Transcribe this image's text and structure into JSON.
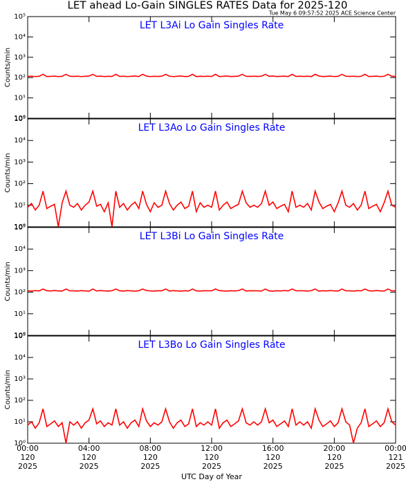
{
  "chart_data": {
    "type": "line",
    "title": "LET ahead Lo-Gain SINGLES RATES Data for 2025-120",
    "subtitle": "Tue May  6 09:57:52 2025 ACE Science Center",
    "xlabel": "UTC Day of Year",
    "ylabel": "Counts/min",
    "log_y": true,
    "xlim": [
      0,
      24
    ],
    "ylim": [
      1,
      100000
    ],
    "yticks": [
      {
        "value": 1,
        "label": "10⁰"
      },
      {
        "value": 10,
        "label": "10¹"
      },
      {
        "value": 100,
        "label": "10²"
      },
      {
        "value": 1000,
        "label": "10³"
      },
      {
        "value": 10000,
        "label": "10⁴"
      },
      {
        "value": 100000,
        "label": "10⁵"
      }
    ],
    "xticks": [
      {
        "value": 0,
        "label": "00:00",
        "day": "120",
        "year": "2025"
      },
      {
        "value": 4,
        "label": "04:00",
        "day": "120",
        "year": "2025"
      },
      {
        "value": 8,
        "label": "08:00",
        "day": "120",
        "year": "2025"
      },
      {
        "value": 12,
        "label": "12:00",
        "day": "120",
        "year": "2025"
      },
      {
        "value": 16,
        "label": "16:00",
        "day": "120",
        "year": "2025"
      },
      {
        "value": 20,
        "label": "20:00",
        "day": "120",
        "year": "2025"
      },
      {
        "value": 24,
        "label": "00:00",
        "day": "121",
        "year": "2025"
      }
    ],
    "x": [
      0,
      0.25,
      0.5,
      0.75,
      1,
      1.25,
      1.5,
      1.75,
      2,
      2.25,
      2.5,
      2.75,
      3,
      3.25,
      3.5,
      3.75,
      4,
      4.25,
      4.5,
      4.75,
      5,
      5.25,
      5.5,
      5.75,
      6,
      6.25,
      6.5,
      6.75,
      7,
      7.25,
      7.5,
      7.75,
      8,
      8.25,
      8.5,
      8.75,
      9,
      9.25,
      9.5,
      9.75,
      10,
      10.25,
      10.5,
      10.75,
      11,
      11.25,
      11.5,
      11.75,
      12,
      12.25,
      12.5,
      12.75,
      13,
      13.25,
      13.5,
      13.75,
      14,
      14.25,
      14.5,
      14.75,
      15,
      15.25,
      15.5,
      15.75,
      16,
      16.25,
      16.5,
      16.75,
      17,
      17.25,
      17.5,
      17.75,
      18,
      18.25,
      18.5,
      18.75,
      19,
      19.25,
      19.5,
      19.75,
      20,
      20.25,
      20.5,
      20.75,
      21,
      21.25,
      21.5,
      21.75,
      22,
      22.25,
      22.5,
      22.75,
      23,
      23.25,
      23.5,
      23.75,
      24
    ],
    "series": [
      {
        "name": "LET L3Ai Lo Gain Singles Rate",
        "color": "#ff0000",
        "title_color": "#0000ff",
        "values": [
          114,
          117,
          112,
          116,
          145,
          113,
          115,
          118,
          112,
          116,
          145,
          117,
          114,
          117,
          112,
          116,
          119,
          145,
          115,
          118,
          112,
          116,
          114,
          145,
          114,
          117,
          112,
          116,
          119,
          113,
          145,
          118,
          112,
          116,
          114,
          117,
          145,
          117,
          112,
          116,
          119,
          113,
          115,
          145,
          112,
          116,
          114,
          117,
          114,
          145,
          112,
          116,
          119,
          113,
          115,
          118,
          145,
          116,
          114,
          117,
          114,
          117,
          145,
          116,
          119,
          113,
          115,
          118,
          112,
          145,
          114,
          117,
          114,
          117,
          112,
          145,
          119,
          113,
          115,
          118,
          112,
          116,
          145,
          117,
          114,
          117,
          112,
          116,
          145,
          113,
          115,
          118,
          112,
          116,
          145,
          117,
          114
        ]
      },
      {
        "name": "LET L3Ao Lo Gain Singles Rate",
        "color": "#ff0000",
        "title_color": "#0000ff",
        "values": [
          8,
          12,
          6,
          10,
          45,
          7,
          9,
          11,
          1,
          13,
          45,
          10,
          8,
          12,
          6,
          10,
          14,
          45,
          9,
          11,
          5,
          13,
          1,
          45,
          8,
          12,
          6,
          10,
          14,
          7,
          45,
          11,
          5,
          13,
          8,
          10,
          45,
          12,
          6,
          10,
          14,
          7,
          9,
          45,
          5,
          13,
          8,
          10,
          8,
          45,
          6,
          10,
          14,
          7,
          9,
          11,
          45,
          13,
          8,
          10,
          8,
          12,
          45,
          10,
          14,
          7,
          9,
          11,
          5,
          45,
          8,
          10,
          8,
          12,
          6,
          45,
          14,
          7,
          9,
          11,
          5,
          13,
          45,
          10,
          8,
          12,
          6,
          10,
          45,
          7,
          9,
          11,
          5,
          13,
          45,
          10,
          8
        ]
      },
      {
        "name": "LET L3Bi Lo Gain Singles Rate",
        "color": "#ff0000",
        "title_color": "#0000ff",
        "values": [
          116,
          113,
          118,
          115,
          140,
          117,
          114,
          119,
          115,
          113,
          140,
          116,
          116,
          113,
          118,
          115,
          112,
          140,
          114,
          119,
          115,
          113,
          117,
          140,
          116,
          113,
          118,
          115,
          112,
          117,
          140,
          119,
          115,
          113,
          117,
          116,
          140,
          113,
          118,
          115,
          112,
          117,
          114,
          140,
          115,
          113,
          117,
          116,
          116,
          140,
          118,
          115,
          112,
          117,
          114,
          119,
          140,
          113,
          117,
          116,
          116,
          113,
          140,
          115,
          112,
          117,
          114,
          119,
          115,
          140,
          117,
          116,
          116,
          113,
          118,
          140,
          112,
          117,
          114,
          119,
          115,
          113,
          140,
          116,
          116,
          113,
          118,
          115,
          140,
          117,
          114,
          119,
          115,
          113,
          140,
          116,
          116
        ]
      },
      {
        "name": "LET L3Bo Lo Gain Singles Rate",
        "color": "#ff0000",
        "title_color": "#0000ff",
        "values": [
          7,
          10,
          5,
          9,
          40,
          6,
          8,
          11,
          6,
          9,
          1,
          10,
          7,
          10,
          5,
          9,
          12,
          40,
          8,
          11,
          6,
          9,
          7,
          40,
          7,
          10,
          5,
          9,
          12,
          6,
          40,
          11,
          6,
          9,
          7,
          10,
          40,
          10,
          5,
          9,
          12,
          6,
          8,
          40,
          6,
          9,
          7,
          10,
          7,
          40,
          5,
          9,
          12,
          6,
          8,
          11,
          40,
          9,
          7,
          10,
          7,
          10,
          40,
          9,
          12,
          6,
          8,
          11,
          6,
          40,
          7,
          10,
          7,
          10,
          5,
          40,
          12,
          6,
          8,
          11,
          6,
          9,
          40,
          10,
          7,
          1,
          5,
          9,
          40,
          6,
          8,
          11,
          6,
          9,
          40,
          10,
          7
        ]
      }
    ]
  }
}
